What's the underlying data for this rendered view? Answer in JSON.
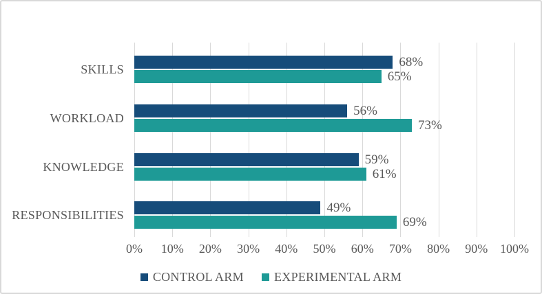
{
  "chart_data": {
    "type": "bar",
    "orientation": "horizontal",
    "categories": [
      "SKILLS",
      "WORKLOAD",
      "KNOWLEDGE",
      "RESPONSIBILITIES"
    ],
    "series": [
      {
        "name": "CONTROL ARM",
        "color": "#164C7A",
        "values": [
          68,
          56,
          59,
          49
        ],
        "labels": [
          "68%",
          "56%",
          "59%",
          "49%"
        ]
      },
      {
        "name": "EXPERIMENTAL ARM",
        "color": "#1E9A96",
        "values": [
          65,
          73,
          61,
          69
        ],
        "labels": [
          "65%",
          "73%",
          "61%",
          "69%"
        ]
      }
    ],
    "xlabel": "",
    "ylabel": "",
    "xlim": [
      0,
      100
    ],
    "x_ticks": [
      "0%",
      "10%",
      "20%",
      "30%",
      "40%",
      "50%",
      "60%",
      "70%",
      "80%",
      "90%",
      "100%"
    ],
    "grid": "vertical",
    "legend_position": "bottom",
    "data_labels_shown": true
  },
  "colors": {
    "control_arm": "#164C7A",
    "experimental_arm": "#1E9A96",
    "gridline": "#d9d9d9",
    "frame_border": "#d9d9d9",
    "text": "#595959",
    "background": "#ffffff"
  }
}
